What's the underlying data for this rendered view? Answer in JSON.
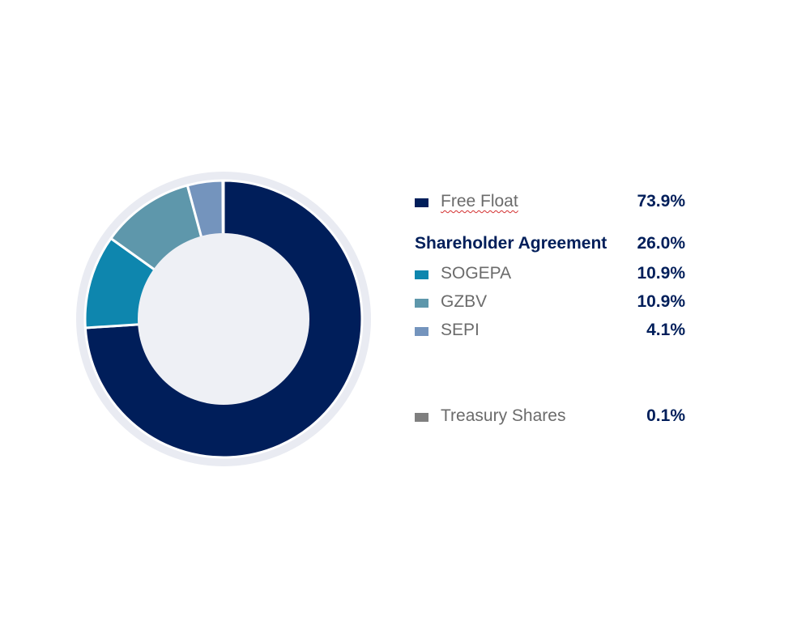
{
  "chart_data": {
    "type": "pie",
    "variant": "donut",
    "slices": [
      {
        "label": "Free Float",
        "value": 73.9,
        "display": "73.9%",
        "color": "#001e5a"
      },
      {
        "label": "SOGEPA",
        "value": 10.9,
        "display": "10.9%",
        "color": "#0e86ae"
      },
      {
        "label": "GZBV",
        "value": 10.9,
        "display": "10.9%",
        "color": "#5e97ab"
      },
      {
        "label": "SEPI",
        "value": 4.1,
        "display": "4.1%",
        "color": "#7494bd"
      },
      {
        "label": "Treasury Shares",
        "value": 0.1,
        "display": "0.1%",
        "color": "#7f7f7f"
      }
    ],
    "group": {
      "label": "Shareholder Agreement",
      "value": 26.0,
      "display": "26.0%"
    },
    "legend_position": "right",
    "colors": {
      "ring_background": "#e9ebf2",
      "hole": "#eef0f5",
      "value_text": "#001e5a",
      "label_text": "#6b6b6b"
    }
  }
}
